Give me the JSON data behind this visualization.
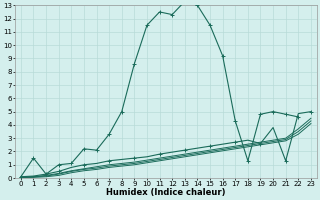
{
  "xlabel": "Humidex (Indice chaleur)",
  "background_color": "#d4efed",
  "grid_color": "#b8dbd8",
  "line_color": "#1a6b5a",
  "xlim": [
    -0.5,
    23.5
  ],
  "ylim": [
    0,
    13
  ],
  "xticks": [
    0,
    1,
    2,
    3,
    4,
    5,
    6,
    7,
    8,
    9,
    10,
    11,
    12,
    13,
    14,
    15,
    16,
    17,
    18,
    19,
    20,
    21,
    22,
    23
  ],
  "yticks": [
    0,
    1,
    2,
    3,
    4,
    5,
    6,
    7,
    8,
    9,
    10,
    11,
    12,
    13
  ],
  "curve1_x": [
    0,
    1,
    2,
    3,
    4,
    5,
    6,
    7,
    8,
    9,
    10,
    11,
    12,
    13,
    14,
    15,
    16,
    17,
    18,
    19,
    20,
    21,
    22
  ],
  "curve1_y": [
    0.1,
    1.5,
    0.3,
    1.0,
    1.1,
    2.2,
    2.1,
    3.3,
    5.0,
    8.6,
    11.5,
    12.5,
    12.3,
    13.3,
    13.0,
    11.5,
    9.2,
    4.3,
    1.3,
    4.8,
    5.0,
    4.8,
    4.6
  ],
  "curve2_x": [
    0,
    1,
    2,
    3,
    4,
    5,
    6,
    7,
    8,
    9,
    10,
    11,
    12,
    13,
    14,
    15,
    16,
    17,
    18,
    19,
    20,
    21,
    22,
    23
  ],
  "curve2_y": [
    0.1,
    0.15,
    0.3,
    0.5,
    0.8,
    1.0,
    1.1,
    1.3,
    1.4,
    1.5,
    1.6,
    1.8,
    1.95,
    2.1,
    2.25,
    2.4,
    2.55,
    2.7,
    2.85,
    2.6,
    3.8,
    1.3,
    4.85,
    5.0
  ],
  "curve3_x": [
    0,
    1,
    2,
    3,
    4,
    5,
    6,
    7,
    8,
    9,
    10,
    11,
    12,
    13,
    14,
    15,
    16,
    17,
    18,
    19,
    20,
    21,
    22,
    23
  ],
  "curve3_y": [
    0.05,
    0.1,
    0.2,
    0.35,
    0.55,
    0.7,
    0.85,
    1.0,
    1.1,
    1.2,
    1.35,
    1.5,
    1.65,
    1.8,
    1.95,
    2.1,
    2.25,
    2.4,
    2.55,
    2.7,
    2.85,
    3.0,
    3.7,
    4.5
  ],
  "curve4_x": [
    0,
    1,
    2,
    3,
    4,
    5,
    6,
    7,
    8,
    9,
    10,
    11,
    12,
    13,
    14,
    15,
    16,
    17,
    18,
    19,
    20,
    21,
    22,
    23
  ],
  "curve4_y": [
    0.05,
    0.1,
    0.15,
    0.3,
    0.5,
    0.65,
    0.75,
    0.9,
    1.0,
    1.1,
    1.25,
    1.4,
    1.55,
    1.7,
    1.85,
    2.0,
    2.15,
    2.3,
    2.45,
    2.6,
    2.75,
    2.9,
    3.5,
    4.3
  ],
  "curve5_x": [
    0,
    1,
    2,
    3,
    4,
    5,
    6,
    7,
    8,
    9,
    10,
    11,
    12,
    13,
    14,
    15,
    16,
    17,
    18,
    19,
    20,
    21,
    22,
    23
  ],
  "curve5_y": [
    0.05,
    0.05,
    0.1,
    0.2,
    0.4,
    0.55,
    0.65,
    0.8,
    0.9,
    1.0,
    1.15,
    1.3,
    1.45,
    1.6,
    1.75,
    1.9,
    2.05,
    2.2,
    2.35,
    2.5,
    2.65,
    2.8,
    3.3,
    4.1
  ]
}
